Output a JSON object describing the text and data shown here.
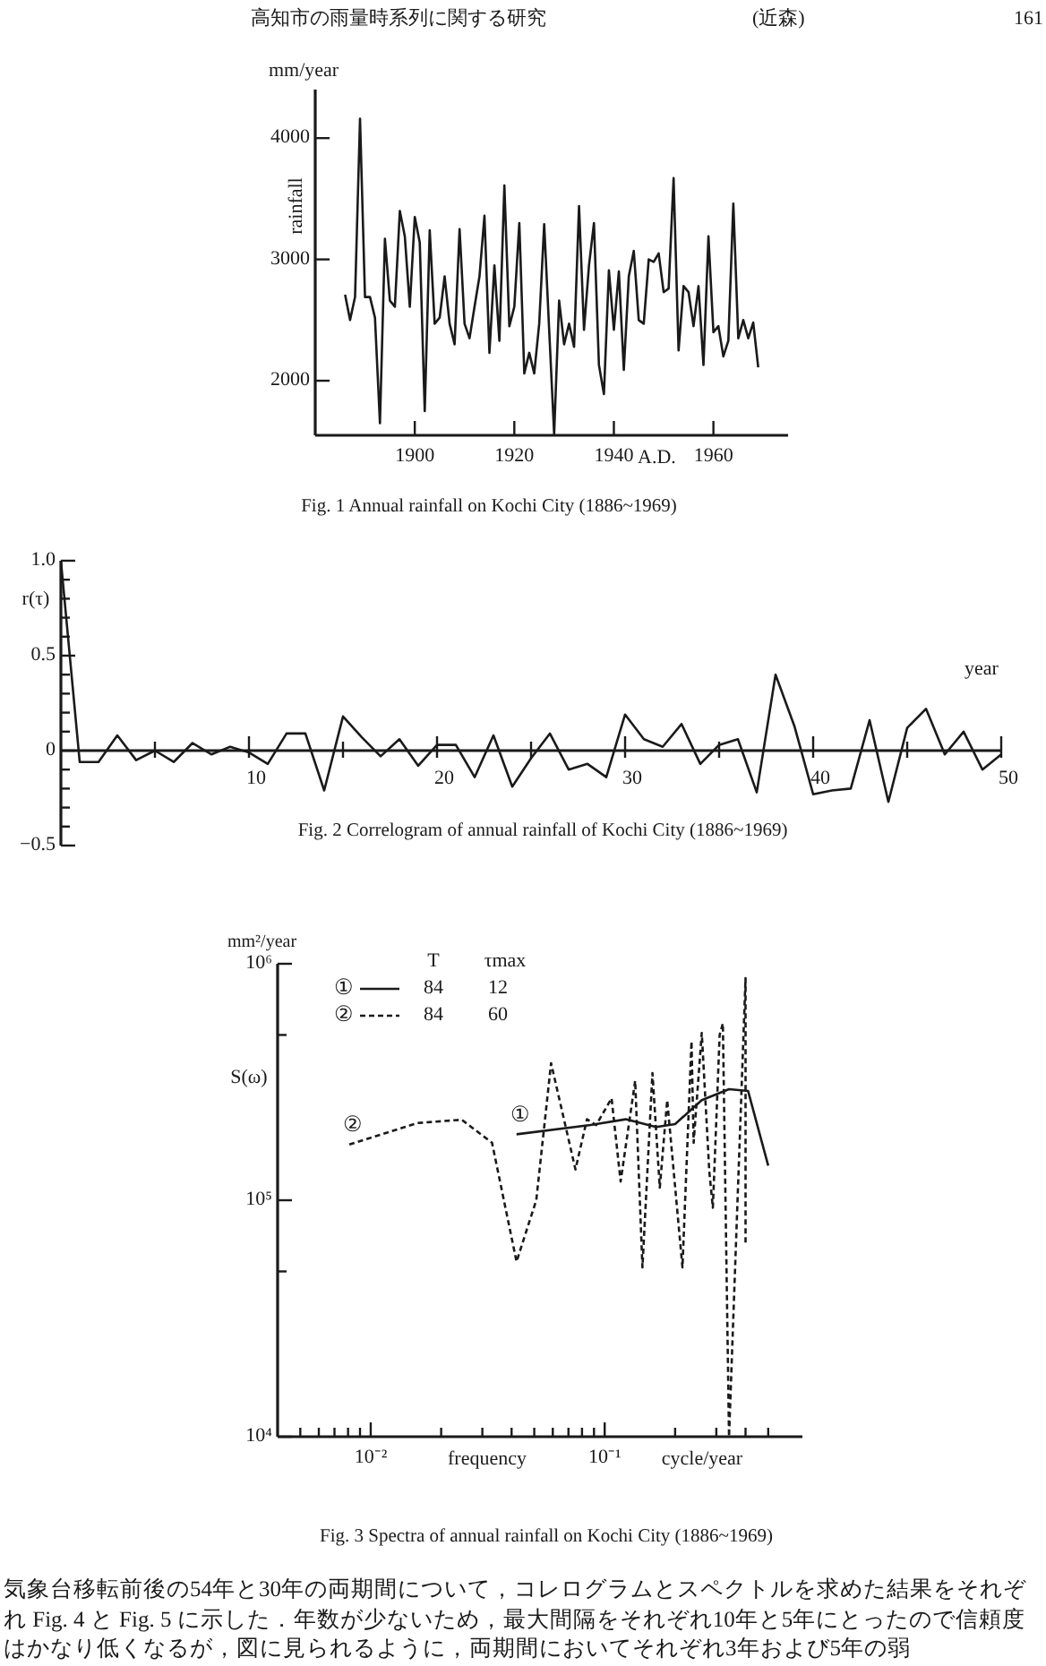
{
  "chart_data": [
    {
      "type": "line",
      "title": "Fig. 1 Annual rainfall on Kochi City (1886~1969)",
      "xlabel": "A.D.",
      "ylabel": "rainfall",
      "annotations": [
        "高知市の雨量時系列に関する研究",
        "(近森)",
        "161",
        "mm/year"
      ],
      "x": [
        1886,
        1887,
        1888,
        1889,
        1890,
        1891,
        1892,
        1893,
        1894,
        1895,
        1896,
        1897,
        1898,
        1899,
        1900,
        1901,
        1902,
        1903,
        1904,
        1905,
        1906,
        1907,
        1908,
        1909,
        1910,
        1911,
        1912,
        1913,
        1914,
        1915,
        1916,
        1917,
        1918,
        1919,
        1920,
        1921,
        1922,
        1923,
        1924,
        1925,
        1926,
        1927,
        1928,
        1929,
        1930,
        1931,
        1932,
        1933,
        1934,
        1935,
        1936,
        1937,
        1938,
        1939,
        1940,
        1941,
        1942,
        1943,
        1944,
        1945,
        1946,
        1947,
        1948,
        1949,
        1950,
        1951,
        1952,
        1953,
        1954,
        1955,
        1956,
        1957,
        1958,
        1959,
        1960,
        1961,
        1962,
        1963,
        1964,
        1965,
        1966,
        1967,
        1968,
        1969
      ],
      "series": [
        {
          "color": "#1a1a1a",
          "line_style": "solid",
          "values": [
            2710,
            2500,
            2690,
            4160,
            2690,
            2690,
            2520,
            1650,
            3170,
            2660,
            2610,
            3400,
            3190,
            2610,
            3350,
            3140,
            1750,
            3240,
            2470,
            2520,
            2860,
            2470,
            2300,
            3250,
            2470,
            2350,
            2610,
            2860,
            3360,
            2230,
            2950,
            2330,
            3610,
            2450,
            2610,
            3300,
            2060,
            2230,
            2060,
            2470,
            3290,
            2420,
            1560,
            2660,
            2300,
            2470,
            2280,
            3440,
            2420,
            2950,
            3300,
            2130,
            1890,
            2910,
            2420,
            2900,
            2090,
            2860,
            3070,
            2500,
            2470,
            3000,
            2980,
            3050,
            2730,
            2760,
            3670,
            2250,
            2780,
            2730,
            2450,
            2780,
            2130,
            3190,
            2400,
            2450,
            2200,
            2330,
            3460,
            2350,
            2500,
            2350,
            2480,
            2110
          ]
        }
      ],
      "xlim": [
        1880,
        1975
      ],
      "xticks": [
        1900,
        1920,
        1940,
        1960
      ],
      "ylim": [
        1550,
        4400
      ],
      "yticks": [
        2000,
        3000,
        4000
      ],
      "grid": false,
      "legend": false
    },
    {
      "type": "line",
      "title": "Fig. 2 Correlogram of annual rainfall of Kochi City (1886~1969)",
      "xlabel": "year",
      "ylabel": "r(τ)",
      "x": [
        0,
        1,
        2,
        3,
        4,
        5,
        6,
        7,
        8,
        9,
        10,
        11,
        12,
        13,
        14,
        15,
        16,
        17,
        18,
        19,
        20,
        21,
        22,
        23,
        24,
        25,
        26,
        27,
        28,
        29,
        30,
        31,
        32,
        33,
        34,
        35,
        36,
        37,
        38,
        39,
        40,
        41,
        42,
        43,
        44,
        45,
        46,
        47,
        48,
        49,
        50
      ],
      "series": [
        {
          "color": "#1a1a1a",
          "line_style": "solid",
          "values": [
            1.0,
            -0.06,
            -0.06,
            0.08,
            -0.05,
            0,
            -0.06,
            0.04,
            -0.02,
            0.02,
            -0.01,
            -0.07,
            0.09,
            0.09,
            -0.21,
            0.18,
            0.07,
            -0.03,
            0.06,
            -0.08,
            0.03,
            0.03,
            -0.14,
            0.08,
            -0.19,
            -0.04,
            0.09,
            -0.1,
            -0.07,
            -0.14,
            0.19,
            0.06,
            0.02,
            0.14,
            -0.07,
            0.03,
            0.06,
            -0.22,
            0.4,
            0.13,
            -0.23,
            -0.21,
            -0.2,
            0.16,
            -0.27,
            0.12,
            0.22,
            -0.02,
            0.1,
            -0.1,
            -0.02
          ]
        }
      ],
      "xlim": [
        0,
        50
      ],
      "xticks": [
        {
          "value": 5,
          "label": null
        },
        10,
        {
          "value": 15,
          "label": null
        },
        20,
        {
          "value": 25,
          "label": null
        },
        30,
        {
          "value": 35,
          "label": null
        },
        40,
        {
          "value": 45,
          "label": null
        },
        50
      ],
      "ylim": [
        -0.5,
        1.0
      ],
      "yticks": [
        {
          "value": -0.5,
          "label": "−0.5"
        },
        {
          "value": -0.4,
          "label": null
        },
        {
          "value": -0.3,
          "label": null
        },
        {
          "value": -0.2,
          "label": null
        },
        {
          "value": -0.1,
          "label": null
        },
        0,
        {
          "value": 0.1,
          "label": null
        },
        {
          "value": 0.2,
          "label": null
        },
        {
          "value": 0.3,
          "label": null
        },
        {
          "value": 0.4,
          "label": null
        },
        0.5,
        {
          "value": 0.6,
          "label": null
        },
        {
          "value": 0.7,
          "label": null
        },
        {
          "value": 0.8,
          "label": null
        },
        {
          "value": 0.9,
          "label": null
        },
        {
          "value": 1.0,
          "label": "1.0"
        }
      ],
      "grid": false,
      "legend": false
    },
    {
      "type": "line",
      "title": "Fig. 3 Spectra of annual rainfall on Kochi City (1886~1969)",
      "xlabel": "frequency",
      "ylabel": "S(ω)",
      "log": "xy",
      "legend": "top left",
      "grid": false,
      "annotations": [
        "T",
        "τmax",
        "84",
        "12",
        "84",
        "60",
        "mm²/year",
        "cycle/year",
        "気象台移転前後の54年と30年の両期間について，コレログラムとスペクトルを求めた結果をそれぞれ Fig. 4 と Fig. 5 に示した．年数が少ないため，最大間隔をそれぞれ10年と5年にとったので信頼度はかなり低くなるが，図に見られるように，両期間においてそれぞれ3年および5年の弱"
      ],
      "series": [
        {
          "name": "①",
          "color": "#1a1a1a",
          "line_style": "solid",
          "x": [
            0.042,
            0.087,
            0.123,
            0.166,
            0.2,
            0.26,
            0.34,
            0.41,
            0.5
          ],
          "values": [
            190000,
            208000,
            220000,
            204000,
            210000,
            265000,
            295000,
            290000,
            140000
          ]
        },
        {
          "name": "②",
          "color": "#1a1a1a",
          "line_style": "dashed",
          "x": [
            0.0081,
            0.0158,
            0.0245,
            0.033,
            0.042,
            0.051,
            0.059,
            0.075,
            0.084,
            0.092,
            0.107,
            0.117,
            0.135,
            0.145,
            0.16,
            0.172,
            0.185,
            0.215,
            0.235,
            0.24,
            0.26,
            0.28,
            0.29,
            0.31,
            0.32,
            0.34,
            0.4,
            0.4
          ],
          "values": [
            172000,
            212000,
            219000,
            175000,
            55000,
            100000,
            380000,
            135000,
            220000,
            208000,
            270000,
            120000,
            320000,
            52000,
            345000,
            113000,
            265000,
            52000,
            470000,
            175000,
            510000,
            132000,
            93000,
            500000,
            560000,
            10000,
            870000,
            64000
          ]
        }
      ],
      "xlim": [
        0.004,
        0.7
      ],
      "xticks": [
        {
          "value": 0.005,
          "label": null
        },
        {
          "value": 0.006,
          "label": null
        },
        {
          "value": 0.007,
          "label": null
        },
        {
          "value": 0.008,
          "label": null
        },
        {
          "value": 0.009,
          "label": null
        },
        {
          "value": 0.01,
          "label": "10⁻²"
        },
        {
          "value": 0.02,
          "label": null
        },
        {
          "value": 0.03,
          "label": null
        },
        {
          "value": 0.04,
          "label": null
        },
        {
          "value": 0.05,
          "label": null
        },
        {
          "value": 0.06,
          "label": null
        },
        {
          "value": 0.07,
          "label": null
        },
        {
          "value": 0.08,
          "label": null
        },
        {
          "value": 0.09,
          "label": null
        },
        {
          "value": 0.1,
          "label": "10⁻¹"
        },
        {
          "value": 0.2,
          "label": null
        },
        {
          "value": 0.3,
          "label": null
        },
        {
          "value": 0.4,
          "label": null
        },
        {
          "value": 0.5,
          "label": null
        }
      ],
      "ylim": [
        10000,
        1000000
      ],
      "yticks": [
        {
          "value": 10000,
          "label": "10⁴"
        },
        {
          "value": 50000,
          "label": null
        },
        {
          "value": 100000,
          "label": "10⁵"
        },
        {
          "value": 500000,
          "label": null
        },
        {
          "value": 1000000,
          "label": "10⁶"
        }
      ]
    }
  ]
}
